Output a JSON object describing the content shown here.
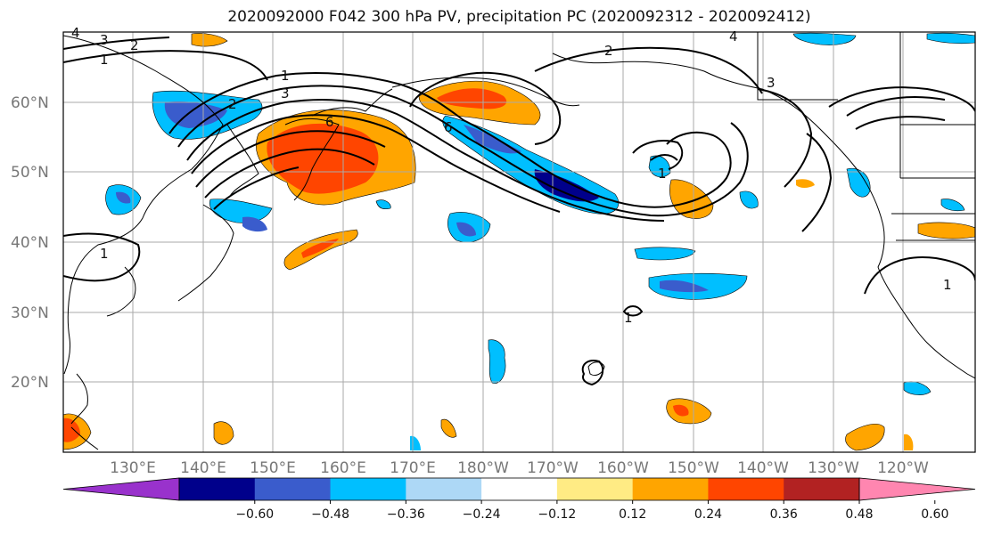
{
  "title": "2020092000 F042 300 hPa PV, precipitation PC (2020092312 - 2020092412)",
  "map": {
    "lat_labels": [
      "60°N",
      "50°N",
      "40°N",
      "30°N",
      "20°N"
    ],
    "lon_labels": [
      "130°E",
      "140°E",
      "150°E",
      "160°E",
      "170°E",
      "180°W",
      "170°W",
      "160°W",
      "150°W",
      "140°W",
      "130°W",
      "120°W"
    ],
    "contour_labels": [
      "1",
      "2",
      "3",
      "4",
      "6",
      "1",
      "2",
      "3",
      "4",
      "3",
      "2",
      "1",
      "6",
      "1",
      "1",
      "1"
    ]
  },
  "colorbar": {
    "ticks": [
      "−0.60",
      "−0.48",
      "−0.36",
      "−0.24",
      "−0.12",
      "0.12",
      "0.24",
      "0.36",
      "0.48",
      "0.60"
    ],
    "colors": [
      "#9932cc",
      "#00008b",
      "#3a5ccc",
      "#00bfff",
      "#add8f6",
      "#ffffff",
      "#ffeb84",
      "#ffa500",
      "#ff4500",
      "#b22222",
      "#ff86b0"
    ]
  }
}
